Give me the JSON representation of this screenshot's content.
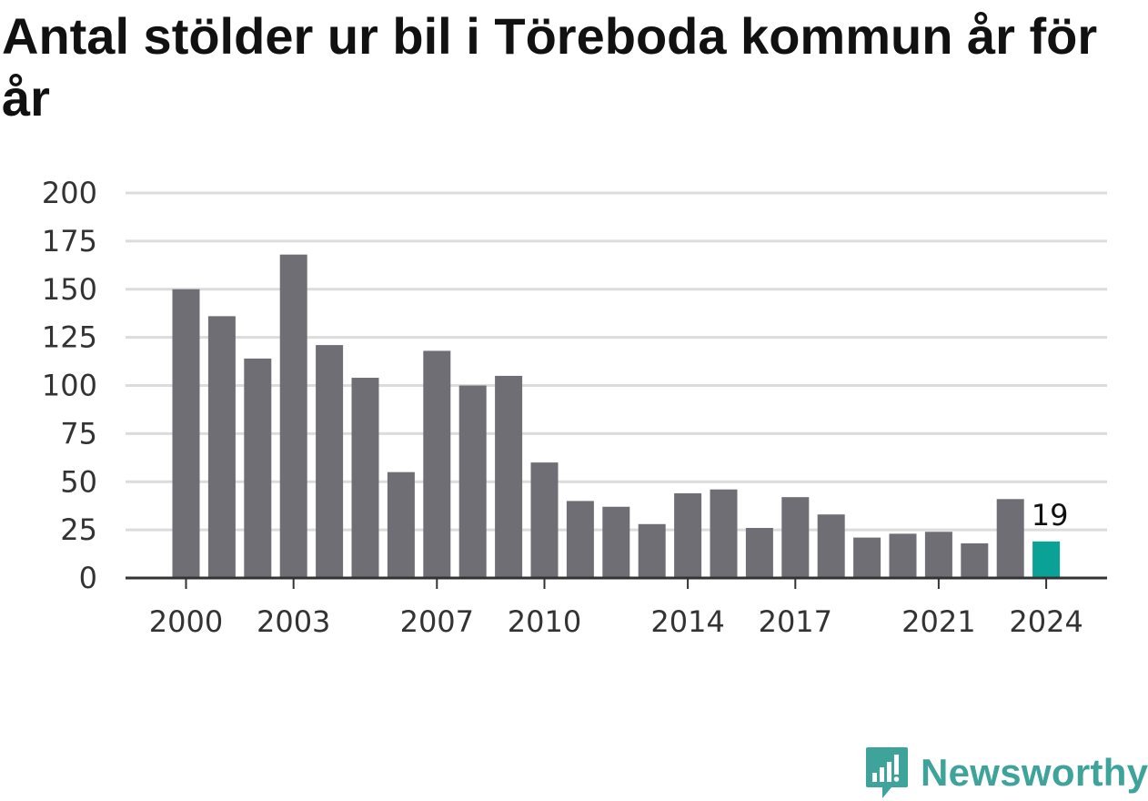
{
  "title": "Antal stölder ur bil i Töreboda kommun år för år",
  "brand": "Newsworthy",
  "colors": {
    "bar": "#6f6e74",
    "highlight": "#0aa196",
    "grid": "#dcdcdc",
    "axis": "#333333",
    "brand": "#3ea39b"
  },
  "chart_data": {
    "type": "bar",
    "categories": [
      "2000",
      "2001",
      "2002",
      "2003",
      "2004",
      "2005",
      "2006",
      "2007",
      "2008",
      "2009",
      "2010",
      "2011",
      "2012",
      "2013",
      "2014",
      "2015",
      "2016",
      "2017",
      "2018",
      "2019",
      "2020",
      "2021",
      "2022",
      "2023",
      "2024"
    ],
    "values": [
      150,
      136,
      114,
      168,
      121,
      104,
      55,
      118,
      100,
      105,
      60,
      40,
      37,
      28,
      44,
      46,
      26,
      42,
      33,
      21,
      23,
      24,
      18,
      41,
      19
    ],
    "highlight": "2024",
    "highlight_label": "19",
    "y_ticks": [
      0,
      25,
      50,
      75,
      100,
      125,
      150,
      175,
      200
    ],
    "x_tick_labels": [
      "2000",
      "2003",
      "2007",
      "2010",
      "2014",
      "2017",
      "2021",
      "2024"
    ],
    "ylim": [
      0,
      200
    ],
    "grid": true,
    "xlabel": "",
    "ylabel": ""
  }
}
